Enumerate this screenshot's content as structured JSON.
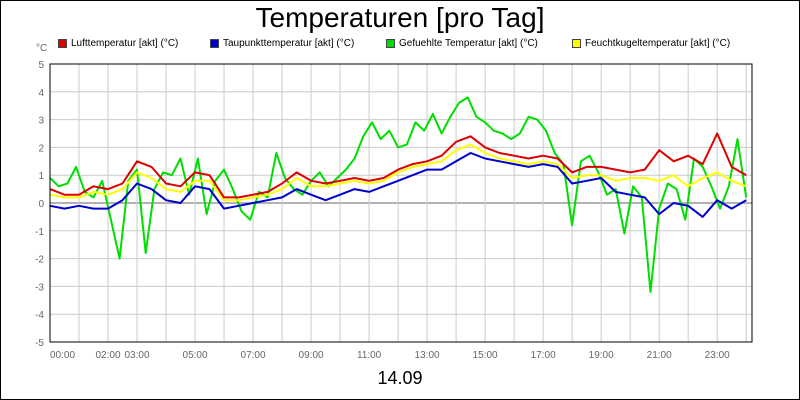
{
  "chart_data": {
    "type": "line",
    "title": "Temperaturen [pro Tag]",
    "xlabel": "14.09",
    "ylabel": "°C",
    "ylim": [
      -5,
      5
    ],
    "xlim_hours": [
      0,
      24.2
    ],
    "grid": true,
    "legend_position": "top",
    "yticks": [
      "5",
      "4",
      "3",
      "2",
      "1",
      "0",
      "-1",
      "-2",
      "-3",
      "-4",
      "-5"
    ],
    "xticks": [
      {
        "h": 0,
        "label": "00:00"
      },
      {
        "h": 2,
        "label": "02:00"
      },
      {
        "h": 3,
        "label": "03:00"
      },
      {
        "h": 5,
        "label": "05:00"
      },
      {
        "h": 7,
        "label": "07:00"
      },
      {
        "h": 9,
        "label": "09:00"
      },
      {
        "h": 11,
        "label": "11:00"
      },
      {
        "h": 13,
        "label": "13:00"
      },
      {
        "h": 15,
        "label": "15:00"
      },
      {
        "h": 17,
        "label": "17:00"
      },
      {
        "h": 19,
        "label": "19:00"
      },
      {
        "h": 21,
        "label": "21:00"
      },
      {
        "h": 23,
        "label": "23:00"
      }
    ],
    "series": [
      {
        "name": "Gefuehlte Temperatur [akt] (°C)",
        "color": "#00dd00",
        "x": [
          0,
          0.3,
          0.6,
          0.9,
          1.2,
          1.5,
          1.8,
          2.1,
          2.4,
          2.7,
          3.0,
          3.3,
          3.6,
          3.9,
          4.2,
          4.5,
          4.8,
          5.1,
          5.4,
          5.7,
          6.0,
          6.3,
          6.6,
          6.9,
          7.2,
          7.5,
          7.8,
          8.1,
          8.4,
          8.7,
          9.0,
          9.3,
          9.6,
          9.9,
          10.2,
          10.5,
          10.8,
          11.1,
          11.4,
          11.7,
          12.0,
          12.3,
          12.6,
          12.9,
          13.2,
          13.5,
          13.8,
          14.1,
          14.4,
          14.7,
          15.0,
          15.3,
          15.6,
          15.9,
          16.2,
          16.5,
          16.8,
          17.1,
          17.4,
          17.7,
          18.0,
          18.3,
          18.6,
          18.9,
          19.2,
          19.5,
          19.8,
          20.1,
          20.4,
          20.7,
          21.0,
          21.3,
          21.6,
          21.9,
          22.2,
          22.5,
          22.8,
          23.1,
          23.4,
          23.7,
          24.0
        ],
        "values": [
          0.9,
          0.6,
          0.7,
          1.3,
          0.4,
          0.2,
          0.8,
          -0.6,
          -2.0,
          0.8,
          1.2,
          -1.8,
          0.5,
          1.1,
          1.0,
          1.6,
          0.3,
          1.6,
          -0.4,
          0.8,
          1.2,
          0.5,
          -0.3,
          -0.6,
          0.4,
          0.2,
          1.8,
          0.9,
          0.5,
          0.3,
          0.8,
          1.1,
          0.6,
          0.9,
          1.2,
          1.6,
          2.4,
          2.9,
          2.3,
          2.6,
          2.0,
          2.1,
          2.9,
          2.6,
          3.2,
          2.5,
          3.1,
          3.6,
          3.8,
          3.1,
          2.9,
          2.6,
          2.5,
          2.3,
          2.5,
          3.1,
          3.0,
          2.6,
          1.8,
          1.4,
          -0.8,
          1.5,
          1.7,
          1.1,
          0.3,
          0.5,
          -1.1,
          0.6,
          0.2,
          -3.2,
          -0.2,
          0.7,
          0.5,
          -0.6,
          1.6,
          1.3,
          0.6,
          -0.2,
          0.6,
          2.3,
          0.2
        ]
      },
      {
        "name": "Feuchtkugeltemperatur [akt] (°C)",
        "color": "#ffff00",
        "x": [
          0,
          0.5,
          1,
          1.5,
          2,
          2.5,
          3,
          3.5,
          4,
          4.5,
          5,
          5.5,
          6,
          6.5,
          7,
          7.5,
          8,
          8.5,
          9,
          9.5,
          10,
          10.5,
          11,
          11.5,
          12,
          12.5,
          13,
          13.5,
          14,
          14.5,
          15,
          15.5,
          16,
          16.5,
          17,
          17.5,
          18,
          18.5,
          19,
          19.5,
          20,
          20.5,
          21,
          21.5,
          22,
          22.5,
          23,
          23.5,
          24
        ],
        "values": [
          0.3,
          0.2,
          0.2,
          0.4,
          0.3,
          0.5,
          1.1,
          0.9,
          0.5,
          0.4,
          0.8,
          0.8,
          0.1,
          0.1,
          0.2,
          0.3,
          0.5,
          0.9,
          0.6,
          0.6,
          0.7,
          0.8,
          0.7,
          0.8,
          1.1,
          1.3,
          1.4,
          1.5,
          1.9,
          2.1,
          1.8,
          1.6,
          1.5,
          1.4,
          1.5,
          1.4,
          0.9,
          1.0,
          1.0,
          0.8,
          0.9,
          0.9,
          0.8,
          1.0,
          0.6,
          0.9,
          1.1,
          0.8,
          0.6
        ]
      },
      {
        "name": "Lufttemperatur [akt] (°C)",
        "color": "#dd0000",
        "x": [
          0,
          0.5,
          1,
          1.5,
          2,
          2.5,
          3,
          3.5,
          4,
          4.5,
          5,
          5.5,
          6,
          6.5,
          7,
          7.5,
          8,
          8.5,
          9,
          9.5,
          10,
          10.5,
          11,
          11.5,
          12,
          12.5,
          13,
          13.5,
          14,
          14.5,
          15,
          15.5,
          16,
          16.5,
          17,
          17.5,
          18,
          18.5,
          19,
          19.5,
          20,
          20.5,
          21,
          21.5,
          22,
          22.5,
          23,
          23.5,
          24
        ],
        "values": [
          0.5,
          0.3,
          0.3,
          0.6,
          0.5,
          0.7,
          1.5,
          1.3,
          0.7,
          0.6,
          1.1,
          1.0,
          0.2,
          0.2,
          0.3,
          0.4,
          0.7,
          1.1,
          0.8,
          0.7,
          0.8,
          0.9,
          0.8,
          0.9,
          1.2,
          1.4,
          1.5,
          1.7,
          2.2,
          2.4,
          2.0,
          1.8,
          1.7,
          1.6,
          1.7,
          1.6,
          1.1,
          1.3,
          1.3,
          1.2,
          1.1,
          1.2,
          1.9,
          1.5,
          1.7,
          1.4,
          2.5,
          1.3,
          1.0
        ]
      },
      {
        "name": "Taupunkttemperatur [akt] (°C)",
        "color": "#0000cc",
        "x": [
          0,
          0.5,
          1,
          1.5,
          2,
          2.5,
          3,
          3.5,
          4,
          4.5,
          5,
          5.5,
          6,
          6.5,
          7,
          7.5,
          8,
          8.5,
          9,
          9.5,
          10,
          10.5,
          11,
          11.5,
          12,
          12.5,
          13,
          13.5,
          14,
          14.5,
          15,
          15.5,
          16,
          16.5,
          17,
          17.5,
          18,
          18.5,
          19,
          19.5,
          20,
          20.5,
          21,
          21.5,
          22,
          22.5,
          23,
          23.5,
          24
        ],
        "values": [
          -0.1,
          -0.2,
          -0.1,
          -0.2,
          -0.2,
          0.1,
          0.7,
          0.5,
          0.1,
          0.0,
          0.6,
          0.5,
          -0.2,
          -0.1,
          0.0,
          0.1,
          0.2,
          0.5,
          0.3,
          0.1,
          0.3,
          0.5,
          0.4,
          0.6,
          0.8,
          1.0,
          1.2,
          1.2,
          1.5,
          1.8,
          1.6,
          1.5,
          1.4,
          1.3,
          1.4,
          1.3,
          0.7,
          0.8,
          0.9,
          0.4,
          0.3,
          0.2,
          -0.4,
          0.0,
          -0.1,
          -0.5,
          0.1,
          -0.2,
          0.1
        ]
      }
    ],
    "legend": [
      {
        "label": "Lufttemperatur [akt] (°C)",
        "color": "#dd0000"
      },
      {
        "label": "Taupunkttemperatur [akt] (°C)",
        "color": "#0000cc"
      },
      {
        "label": "Gefuehlte Temperatur [akt] (°C)",
        "color": "#00dd00"
      },
      {
        "label": "Feuchtkugeltemperatur [akt] (°C)",
        "color": "#ffff00"
      }
    ]
  }
}
